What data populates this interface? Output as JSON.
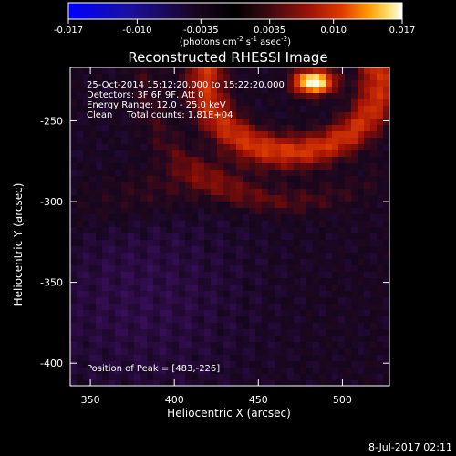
{
  "colorbar": {
    "ticks": [
      "-0.017",
      "-0.010",
      "-0.0035",
      "0.0035",
      "0.010",
      "0.017"
    ],
    "tick_values": [
      -0.017,
      -0.01,
      -0.0035,
      0.0035,
      0.01,
      0.017
    ],
    "range": [
      -0.017,
      0.017
    ],
    "units_prefix": "(photons cm",
    "units_exp1": "-2",
    "units_mid1": " s",
    "units_exp2": "-1",
    "units_mid2": " asec",
    "units_exp3": "-2",
    "units_suffix": ")"
  },
  "chart_data": {
    "type": "heatmap",
    "title": "Reconstructed RHESSI Image",
    "xlabel": "Heliocentric X (arcsec)",
    "ylabel": "Heliocentric Y (arcsec)",
    "xlim": [
      338,
      528
    ],
    "ylim": [
      -414,
      -217
    ],
    "x_ticks": [
      350,
      400,
      450,
      500
    ],
    "y_ticks": [
      -250,
      -300,
      -350,
      -400
    ],
    "colormap": "blue-black-red-yellow-white",
    "peak_position": [
      483,
      -226
    ],
    "annotations": [
      "25-Oct-2014 15:12:20.000 to 15:22:20.000",
      "Detectors: 3F 6F 9F, Att 0",
      "Energy Range: 12.0 - 25.0 keV",
      "Clean     Total counts: 1.81E+04"
    ],
    "peak_label": "Position of Peak = [483,-226]"
  },
  "footer": {
    "date": "8-Jul-2017 02:11"
  }
}
